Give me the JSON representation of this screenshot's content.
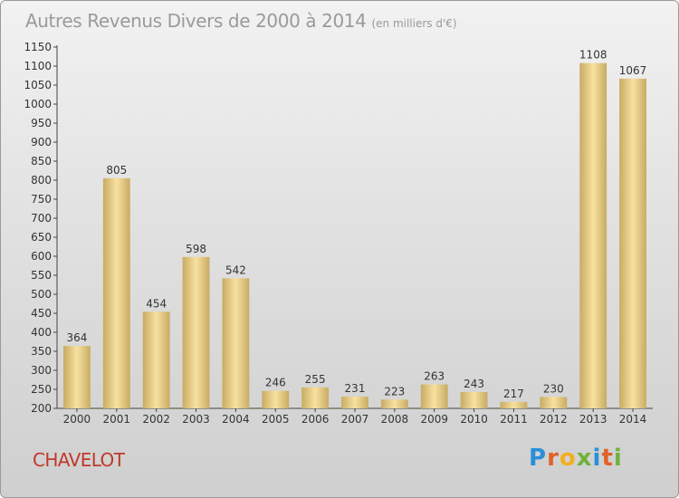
{
  "title": "Autres Revenus Divers de 2000 à 2014",
  "unit_note": "(en milliers d'€)",
  "locality": "CHAVELOT",
  "brand": {
    "text": "Proxiti",
    "letter_colors": [
      "#2a8fd8",
      "#e0622a",
      "#f2b01e",
      "#6fb23c",
      "#2a8fd8",
      "#e0622a",
      "#6fb23c"
    ]
  },
  "chart_data": {
    "type": "bar",
    "categories": [
      "2000",
      "2001",
      "2002",
      "2003",
      "2004",
      "2005",
      "2006",
      "2007",
      "2008",
      "2009",
      "2010",
      "2011",
      "2012",
      "2013",
      "2014"
    ],
    "values": [
      364,
      805,
      454,
      598,
      542,
      246,
      255,
      231,
      223,
      263,
      243,
      217,
      230,
      1108,
      1067
    ],
    "ylim": [
      200,
      1150
    ],
    "ytick_step": 50,
    "grid": false,
    "colors": {
      "bar_light": "#f8e1a0",
      "bar_dark": "#c8ab63"
    }
  }
}
